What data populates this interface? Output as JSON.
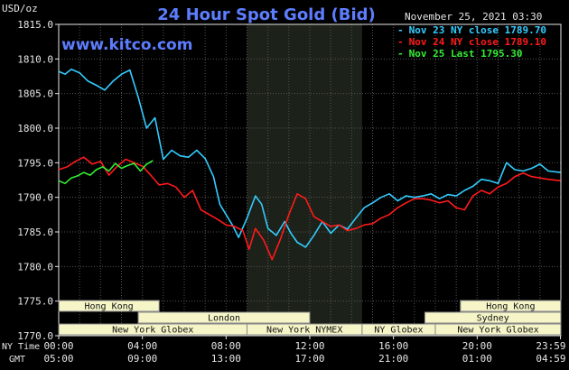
{
  "chart_data": {
    "type": "line",
    "title": "24 Hour Spot Gold (Bid)",
    "ylabel": "USD/oz",
    "watermark": "www.kitco.com",
    "date_label": "November 25, 2021 03:30",
    "ylim": [
      1770.0,
      1815.0
    ],
    "y_ticks": [
      1815.0,
      1810.0,
      1805.0,
      1800.0,
      1795.0,
      1790.0,
      1785.0,
      1780.0,
      1775.0,
      1770.0
    ],
    "y_tick_labels": [
      "1815.0",
      "1810.0",
      "1805.0",
      "1800.0",
      "1795.0",
      "1790.0",
      "1785.0",
      "1780.0",
      "1775.0",
      "1770.0"
    ],
    "xlim": [
      0,
      24
    ],
    "x_ticks": [
      0,
      4,
      8,
      12,
      16,
      20,
      23.98
    ],
    "x_tick_labels_ny": [
      "00:00",
      "04:00",
      "08:00",
      "12:00",
      "16:00",
      "20:00",
      "23:59"
    ],
    "x_tick_labels_gmt": [
      "05:00",
      "09:00",
      "13:00",
      "17:00",
      "21:00",
      "01:00",
      "04:59"
    ],
    "x_row_label_ny": "NY Time",
    "x_row_label_gmt": "GMT",
    "highlight_band": [
      9,
      14.5
    ],
    "grid": true,
    "legend_position": "top-right",
    "series": [
      {
        "name": "Nov 23 NY close 1789.70",
        "color": "#33ccff",
        "x": [
          0,
          0.3,
          0.6,
          1,
          1.4,
          1.8,
          2.2,
          2.6,
          3,
          3.4,
          3.8,
          4.2,
          4.6,
          5,
          5.4,
          5.8,
          6.2,
          6.6,
          7,
          7.4,
          7.7,
          8,
          8.3,
          8.6,
          9,
          9.4,
          9.7,
          10,
          10.4,
          10.8,
          11.1,
          11.4,
          11.8,
          12.2,
          12.6,
          13,
          13.4,
          13.8,
          14.2,
          14.6,
          15,
          15.4,
          15.8,
          16.2,
          16.6,
          17,
          17.4,
          17.8,
          18.2,
          18.6,
          19,
          19.4,
          19.8,
          20.2,
          20.6,
          21,
          21.4,
          21.8,
          22.2,
          22.6,
          23,
          23.4,
          23.98
        ],
        "y": [
          1808.2,
          1807.8,
          1808.5,
          1808.0,
          1806.8,
          1806.2,
          1805.5,
          1806.8,
          1807.8,
          1808.4,
          1804.5,
          1800.0,
          1801.5,
          1795.5,
          1796.8,
          1796.0,
          1795.8,
          1796.8,
          1795.6,
          1793.0,
          1789.0,
          1787.5,
          1786.0,
          1784.2,
          1787.0,
          1790.2,
          1789.0,
          1785.5,
          1784.5,
          1786.5,
          1784.8,
          1783.5,
          1782.8,
          1784.5,
          1786.5,
          1784.8,
          1786.0,
          1785.4,
          1787.0,
          1788.5,
          1789.2,
          1790.0,
          1790.5,
          1789.5,
          1790.2,
          1790.0,
          1790.2,
          1790.5,
          1789.8,
          1790.4,
          1790.2,
          1791.0,
          1791.6,
          1792.6,
          1792.4,
          1792.0,
          1795.0,
          1794.0,
          1793.8,
          1794.2,
          1794.8,
          1793.8,
          1793.6
        ]
      },
      {
        "name": "Nov 24 NY close 1789.10",
        "color": "#ff1a1a",
        "x": [
          0,
          0.4,
          0.8,
          1.2,
          1.6,
          2,
          2.4,
          2.8,
          3.2,
          3.6,
          4,
          4.4,
          4.8,
          5.2,
          5.6,
          6,
          6.4,
          6.8,
          7.2,
          7.6,
          8,
          8.4,
          8.8,
          9.1,
          9.4,
          9.8,
          10.2,
          10.6,
          11,
          11.4,
          11.8,
          12.2,
          12.6,
          13,
          13.4,
          13.8,
          14.2,
          14.6,
          15,
          15.4,
          15.8,
          16.2,
          16.6,
          17,
          17.4,
          17.8,
          18.2,
          18.6,
          19,
          19.4,
          19.8,
          20.2,
          20.6,
          21,
          21.4,
          21.8,
          22.2,
          22.6,
          23,
          23.4,
          23.98
        ],
        "y": [
          1794.0,
          1794.4,
          1795.2,
          1795.8,
          1794.8,
          1795.2,
          1793.2,
          1794.5,
          1795.5,
          1795.0,
          1794.5,
          1793.2,
          1791.8,
          1792.0,
          1791.5,
          1790.0,
          1791.0,
          1788.2,
          1787.5,
          1786.8,
          1786.0,
          1785.8,
          1785.2,
          1782.5,
          1785.5,
          1783.8,
          1781.0,
          1784.0,
          1787.5,
          1790.5,
          1789.8,
          1787.2,
          1786.5,
          1785.8,
          1786.0,
          1785.2,
          1785.5,
          1786.0,
          1786.2,
          1787.0,
          1787.5,
          1788.5,
          1789.2,
          1789.8,
          1789.8,
          1789.6,
          1789.2,
          1789.5,
          1788.5,
          1788.2,
          1790.2,
          1791.0,
          1790.5,
          1791.5,
          1792.0,
          1793.0,
          1793.5,
          1793.0,
          1792.8,
          1792.6,
          1792.4
        ]
      },
      {
        "name": "Nov 25 Last 1795.30",
        "color": "#33ee33",
        "x": [
          0,
          0.3,
          0.6,
          0.9,
          1.2,
          1.5,
          1.8,
          2.1,
          2.4,
          2.7,
          3.0,
          3.3,
          3.6,
          3.9,
          4.2,
          4.5
        ],
        "y": [
          1792.4,
          1792.0,
          1792.8,
          1793.1,
          1793.6,
          1793.2,
          1794.0,
          1794.4,
          1793.8,
          1794.9,
          1794.2,
          1794.6,
          1794.9,
          1793.8,
          1794.8,
          1795.3
        ]
      }
    ]
  },
  "sessions": [
    {
      "name": "Hong Kong",
      "start": 0,
      "end": 4.8,
      "row": 0
    },
    {
      "name": "Hong Kong",
      "start": 19.2,
      "end": 24,
      "row": 0
    },
    {
      "name": "London",
      "start": 3.8,
      "end": 12.0,
      "row": 1
    },
    {
      "name": "Sydney",
      "start": 17.5,
      "end": 24,
      "row": 1
    },
    {
      "name": "New York Globex",
      "start": 0,
      "end": 9.0,
      "row": 2
    },
    {
      "name": "New York NYMEX",
      "start": 9.0,
      "end": 14.5,
      "row": 2
    },
    {
      "name": "NY Globex",
      "start": 14.5,
      "end": 18.0,
      "row": 2
    },
    {
      "name": "New York Globex",
      "start": 18.0,
      "end": 24,
      "row": 2
    }
  ],
  "colors": {
    "background": "#000000",
    "grid": "#555555",
    "axis_text": "#e6e6e6",
    "title": "#5d7dff",
    "watermark": "#5d7dff",
    "highlight_band": "#1c2119",
    "session_fill": "#f5f5c8",
    "session_stroke": "#888888",
    "session_text": "#111111",
    "legend_text": "#ffffff"
  }
}
